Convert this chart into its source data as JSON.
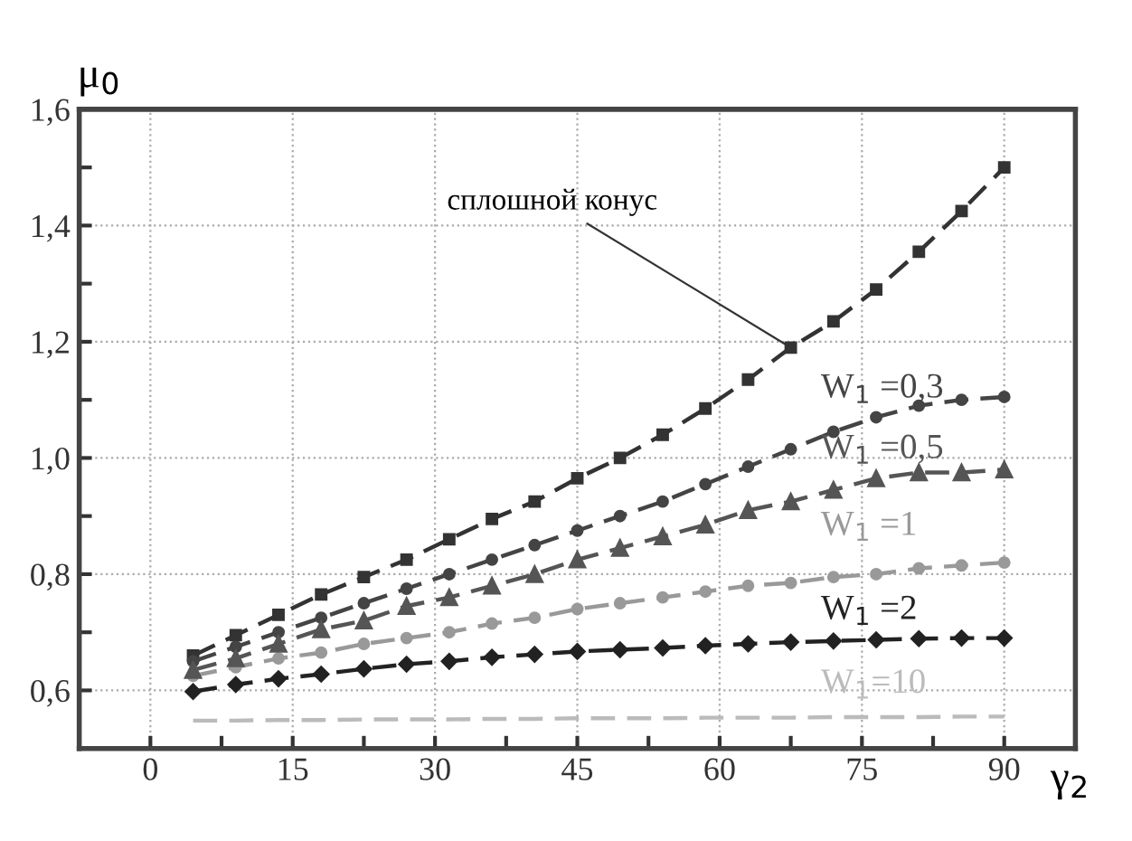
{
  "chart_data": {
    "type": "line",
    "xlabel": "γ$_{2}$",
    "ylabel": "μ$_{0}$",
    "x": [
      4.5,
      9,
      13.5,
      18,
      22.5,
      27,
      31.5,
      36,
      40.5,
      45,
      49.5,
      54,
      58.5,
      63,
      67.5,
      72,
      76.5,
      81,
      85.5,
      90
    ],
    "series": [
      {
        "name": "сплошной конус",
        "color": "#333333",
        "marker": "square",
        "values": [
          0.66,
          0.695,
          0.73,
          0.765,
          0.795,
          0.825,
          0.86,
          0.895,
          0.925,
          0.965,
          1.0,
          1.04,
          1.085,
          1.135,
          1.19,
          1.235,
          1.29,
          1.355,
          1.425,
          1.5
        ]
      },
      {
        "name": "W$_{1}$ =0,3",
        "color": "#444444",
        "marker": "circle",
        "values": [
          0.65,
          0.675,
          0.7,
          0.725,
          0.75,
          0.775,
          0.8,
          0.825,
          0.85,
          0.875,
          0.9,
          0.925,
          0.955,
          0.985,
          1.015,
          1.045,
          1.07,
          1.09,
          1.1,
          1.105
        ]
      },
      {
        "name": "W$_{1}$ =0,5",
        "color": "#555555",
        "marker": "triangle",
        "values": [
          0.635,
          0.655,
          0.68,
          0.705,
          0.72,
          0.745,
          0.76,
          0.78,
          0.8,
          0.825,
          0.845,
          0.865,
          0.885,
          0.91,
          0.925,
          0.945,
          0.965,
          0.975,
          0.975,
          0.98
        ]
      },
      {
        "name": "W$_{1}$ =1",
        "color": "#999999",
        "marker": "circle",
        "values": [
          0.625,
          0.64,
          0.655,
          0.665,
          0.68,
          0.69,
          0.7,
          0.715,
          0.725,
          0.74,
          0.75,
          0.76,
          0.77,
          0.78,
          0.785,
          0.795,
          0.8,
          0.81,
          0.815,
          0.82
        ]
      },
      {
        "name": "W$_{1}$ =2",
        "color": "#222222",
        "marker": "diamond",
        "values": [
          0.598,
          0.61,
          0.62,
          0.628,
          0.637,
          0.645,
          0.65,
          0.657,
          0.662,
          0.667,
          0.67,
          0.673,
          0.677,
          0.68,
          0.683,
          0.685,
          0.687,
          0.689,
          0.69,
          0.69
        ]
      },
      {
        "name": "W$_{1}$=10",
        "color": "#bbbbbb",
        "marker": "none",
        "values": [
          0.548,
          0.548,
          0.549,
          0.549,
          0.55,
          0.55,
          0.55,
          0.551,
          0.551,
          0.552,
          0.552,
          0.552,
          0.553,
          0.553,
          0.553,
          0.554,
          0.554,
          0.554,
          0.555,
          0.555
        ]
      }
    ],
    "line_style": "dashed",
    "grid": true,
    "legend": false,
    "xlim": [
      -7.5,
      97.5
    ],
    "ylim": [
      0.5,
      1.6
    ],
    "xticks": [
      0,
      {
        "value": 7.5,
        "label": null
      },
      15,
      {
        "value": 22.5,
        "label": null
      },
      30,
      {
        "value": 37.5,
        "label": null
      },
      45,
      {
        "value": 52.5,
        "label": null
      },
      60,
      {
        "value": 67.5,
        "label": null
      },
      75,
      {
        "value": 82.5,
        "label": null
      },
      90
    ],
    "yticks": [
      {
        "value": 0.6,
        "label": "0,6"
      },
      {
        "value": 0.7,
        "label": null
      },
      {
        "value": 0.8,
        "label": "0,8"
      },
      {
        "value": 0.9,
        "label": null
      },
      {
        "value": 1.0,
        "label": "1,0"
      },
      {
        "value": 1.1,
        "label": null
      },
      {
        "value": 1.2,
        "label": "1,2"
      },
      {
        "value": 1.3,
        "label": null
      },
      {
        "value": 1.4,
        "label": "1,4"
      },
      {
        "value": 1.5,
        "label": null
      },
      {
        "value": 1.6,
        "label": "1,6"
      }
    ]
  }
}
